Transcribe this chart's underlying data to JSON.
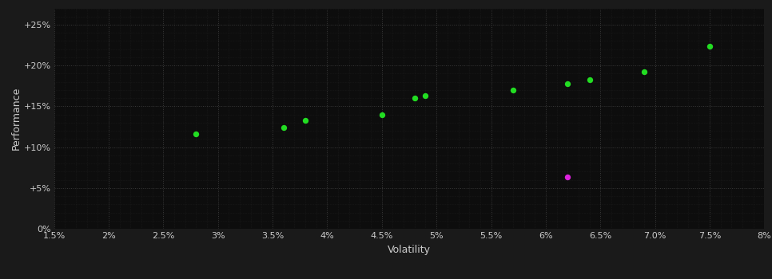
{
  "xlabel": "Volatility",
  "ylabel": "Performance",
  "background_color": "#1a1a1a",
  "plot_bg_color": "#0d0d0d",
  "grid_color": "#3a3a3a",
  "text_color": "#cccccc",
  "xlim": [
    0.015,
    0.08
  ],
  "ylim": [
    0.0,
    0.27
  ],
  "xticks": [
    0.015,
    0.02,
    0.025,
    0.03,
    0.035,
    0.04,
    0.045,
    0.05,
    0.055,
    0.06,
    0.065,
    0.07,
    0.075,
    0.08
  ],
  "yticks": [
    0.0,
    0.05,
    0.1,
    0.15,
    0.2,
    0.25
  ],
  "green_points": [
    [
      0.028,
      0.116
    ],
    [
      0.036,
      0.124
    ],
    [
      0.038,
      0.133
    ],
    [
      0.045,
      0.14
    ],
    [
      0.048,
      0.16
    ],
    [
      0.049,
      0.163
    ],
    [
      0.057,
      0.17
    ],
    [
      0.062,
      0.178
    ],
    [
      0.064,
      0.183
    ],
    [
      0.069,
      0.192
    ],
    [
      0.075,
      0.224
    ]
  ],
  "magenta_points": [
    [
      0.062,
      0.063
    ]
  ],
  "green_color": "#22dd22",
  "magenta_color": "#dd22dd",
  "marker_size": 28
}
